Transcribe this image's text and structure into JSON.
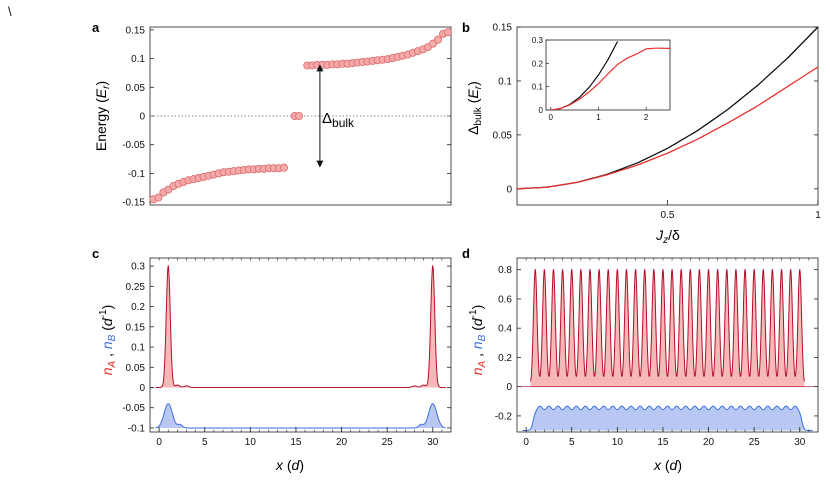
{
  "figure": {
    "panel_labels": [
      "a",
      "b",
      "c",
      "d"
    ],
    "corner_glyph": "\\"
  },
  "colors": {
    "red": "#e8312f",
    "dark_red": "#b3102a",
    "pink_fill": "#f7b8b8",
    "marker_face": "#f5aaaa",
    "marker_edge": "#d86a6a",
    "blue": "#3d6fe0",
    "blue_fill": "#b9c8f3",
    "black": "#111111",
    "grid_dotted": "#888888"
  },
  "chart_data": [
    {
      "id": "a",
      "type": "scatter",
      "ylabel": "Energy (E_r)",
      "ylabel_parts": {
        "main": "Energy (",
        "sym": "E",
        "sub": "r",
        "close": ")"
      },
      "annotation": {
        "text": "Δ",
        "sub": "bulk",
        "from": -0.09,
        "to": 0.09,
        "x": 17.5
      },
      "xlim": [
        0,
        31
      ],
      "ylim": [
        -0.155,
        0.155
      ],
      "yticks": [
        0.15,
        0.1,
        0.05,
        0,
        -0.05,
        -0.1,
        -0.15
      ],
      "ytick_labels": [
        "0.15",
        "0.1",
        "0.05",
        "0",
        "-0.05",
        "-0.1",
        "-0.15"
      ],
      "zero_line": true,
      "series": [
        {
          "name": "lower band",
          "values": [
            -0.145,
            -0.142,
            -0.133,
            -0.128,
            -0.122,
            -0.118,
            -0.115,
            -0.112,
            -0.11,
            -0.108,
            -0.106,
            -0.104,
            -0.102,
            -0.1,
            -0.098,
            -0.097,
            -0.096,
            -0.095,
            -0.094,
            -0.093,
            -0.093,
            -0.092,
            -0.092,
            -0.091,
            -0.091,
            -0.091,
            -0.09
          ]
        },
        {
          "name": "edge states",
          "values": [
            0,
            0
          ]
        },
        {
          "name": "upper band",
          "values": [
            0.088,
            0.088,
            0.089,
            0.089,
            0.089,
            0.09,
            0.09,
            0.091,
            0.091,
            0.092,
            0.093,
            0.094,
            0.095,
            0.096,
            0.097,
            0.098,
            0.099,
            0.101,
            0.103,
            0.105,
            0.107,
            0.11,
            0.113,
            0.116,
            0.12,
            0.126,
            0.133,
            0.143,
            0.146
          ]
        }
      ]
    },
    {
      "id": "b",
      "type": "line",
      "xlabel": "J_z/δ",
      "xlabel_parts": {
        "sym": "J",
        "sub": "z",
        "rest": "/δ"
      },
      "ylabel": "Δ_bulk (E_r)",
      "ylabel_parts": {
        "sym": "Δ",
        "sub": "bulk",
        "rest": " (",
        "sym2": "E",
        "sub2": "r",
        "close": ")"
      },
      "xlim": [
        0,
        1
      ],
      "ylim": [
        -0.015,
        0.15
      ],
      "xticks": [
        0.5,
        1
      ],
      "xtick_labels": [
        "0.5",
        "1"
      ],
      "yticks": [
        0,
        0.05,
        0.1,
        0.15
      ],
      "ytick_labels": [
        "0",
        "0.05",
        "0.1",
        "0.15"
      ],
      "series": [
        {
          "name": "black",
          "x": [
            0,
            0.1,
            0.2,
            0.3,
            0.4,
            0.5,
            0.6,
            0.7,
            0.8,
            0.9,
            1.0
          ],
          "values": [
            0,
            0.0015,
            0.006,
            0.0135,
            0.024,
            0.0375,
            0.054,
            0.0735,
            0.096,
            0.1215,
            0.15
          ]
        },
        {
          "name": "red",
          "x": [
            0,
            0.1,
            0.2,
            0.3,
            0.4,
            0.5,
            0.6,
            0.7,
            0.8,
            0.9,
            1.0
          ],
          "values": [
            0,
            0.0015,
            0.006,
            0.013,
            0.022,
            0.033,
            0.046,
            0.061,
            0.077,
            0.095,
            0.113
          ]
        }
      ],
      "inset": {
        "xlim": [
          -0.1,
          2.5
        ],
        "ylim": [
          0,
          0.3
        ],
        "xticks": [
          0,
          1,
          2
        ],
        "xtick_labels": [
          "0",
          "1",
          "2"
        ],
        "yticks": [
          0,
          0.1,
          0.2,
          0.3
        ],
        "ytick_labels": [
          "0",
          "0.1",
          "0.2",
          "0.3"
        ],
        "series": [
          {
            "name": "black",
            "x": [
              0,
              0.2,
              0.4,
              0.6,
              0.8,
              1.0,
              1.2,
              1.4
            ],
            "values": [
              0,
              0.006,
              0.024,
              0.054,
              0.096,
              0.15,
              0.216,
              0.294
            ]
          },
          {
            "name": "red",
            "x": [
              0,
              0.2,
              0.4,
              0.6,
              0.8,
              1.0,
              1.2,
              1.4,
              1.6,
              1.8,
              2.0,
              2.2,
              2.5
            ],
            "values": [
              0,
              0.006,
              0.022,
              0.046,
              0.077,
              0.113,
              0.155,
              0.195,
              0.222,
              0.24,
              0.262,
              0.265,
              0.264
            ]
          }
        ]
      }
    },
    {
      "id": "c",
      "type": "area",
      "xlabel": "x (d)",
      "xlabel_parts": {
        "sym": "x",
        "rest": " (",
        "sym2": "d",
        "close": ")"
      },
      "ylabel": "n_A , n_B (d^-1)",
      "ylabel_parts": {
        "a": "n",
        "a_sub": "A",
        "sep": " , ",
        "b": "n",
        "b_sub": "B",
        "rest": " (",
        "d": "d",
        "exp": "-1",
        "close": ")"
      },
      "xlim": [
        -1,
        32
      ],
      "ylim": [
        -0.11,
        0.32
      ],
      "xticks": [
        0,
        5,
        10,
        15,
        20,
        25,
        30
      ],
      "xtick_labels": [
        "0",
        "5",
        "10",
        "15",
        "20",
        "25",
        "30"
      ],
      "yticks": [
        0.3,
        0.25,
        0.2,
        0.15,
        0.1,
        0.05,
        0,
        -0.05,
        -0.1
      ],
      "ytick_labels": [
        "0.3",
        "0.25",
        "0.2",
        "0.15",
        "0.1",
        "0.05",
        "0",
        "-0.05",
        "-0.1"
      ],
      "series": [
        {
          "name": "n_A",
          "baseline": 0,
          "peaks": [
            {
              "x": 1,
              "h": 0.3,
              "w": 0.22
            },
            {
              "x": 30,
              "h": 0.3,
              "w": 0.22
            }
          ],
          "ripples": [
            {
              "x": 2,
              "h": 0.006
            },
            {
              "x": 3,
              "h": 0.004
            },
            {
              "x": 28,
              "h": 0.004
            },
            {
              "x": 29,
              "h": 0.006
            }
          ]
        },
        {
          "name": "n_B",
          "baseline": -0.1,
          "peaks": [
            {
              "x": 1,
              "h": 0.06,
              "w": 0.45
            },
            {
              "x": 30,
              "h": 0.06,
              "w": 0.45
            }
          ],
          "ripples": [
            {
              "x": 2.3,
              "h": 0.008
            },
            {
              "x": 28.7,
              "h": 0.008
            }
          ]
        }
      ]
    },
    {
      "id": "d",
      "type": "area",
      "xlabel": "x (d)",
      "xlabel_parts": {
        "sym": "x",
        "rest": " (",
        "sym2": "d",
        "close": ")"
      },
      "ylabel": "n_A , n_B (d^-1)",
      "ylabel_parts": {
        "a": "n",
        "a_sub": "A",
        "sep": " , ",
        "b": "n",
        "b_sub": "B",
        "rest": " (",
        "d": "d",
        "exp": "-1",
        "close": ")"
      },
      "xlim": [
        -1,
        32
      ],
      "ylim": [
        -0.31,
        0.88
      ],
      "xticks": [
        0,
        5,
        10,
        15,
        20,
        25,
        30
      ],
      "xtick_labels": [
        "0",
        "5",
        "10",
        "15",
        "20",
        "25",
        "30"
      ],
      "yticks": [
        0.8,
        0.6,
        0.4,
        0.2,
        0,
        -0.2
      ],
      "ytick_labels": [
        "0.8",
        "0.6",
        "0.4",
        "0.2",
        "0",
        "-0.2"
      ],
      "series": [
        {
          "name": "n_A",
          "baseline": 0,
          "peak_value": 0.8,
          "n_peaks": 30,
          "first_x": 1
        },
        {
          "name": "n_B",
          "baseline": -0.3,
          "plateau": -0.145,
          "ripple": 0.012,
          "x_start": 0.8,
          "x_end": 30.2
        }
      ]
    }
  ]
}
